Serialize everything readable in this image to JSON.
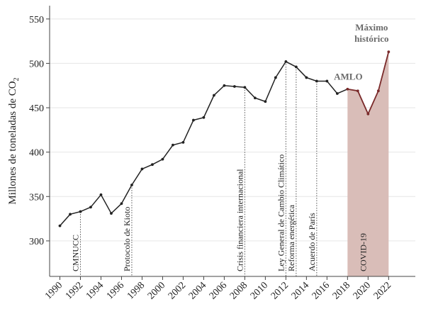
{
  "chart_data": {
    "type": "line",
    "title": "",
    "xlabel": "",
    "ylabel": "Millones de toneladas de CO",
    "ylabel_sub": "2",
    "xlim": [
      1989,
      2024.6
    ],
    "ylim": [
      260,
      565
    ],
    "yticks": [
      300,
      350,
      400,
      450,
      500,
      550
    ],
    "xticks": [
      "1990",
      "1992",
      "1994",
      "1996",
      "1998",
      "2000",
      "2002",
      "2004",
      "2006",
      "2008",
      "2010",
      "2012",
      "2014",
      "2016",
      "2018",
      "2020",
      "2022"
    ],
    "grid": "horizontal",
    "x": [
      1990,
      1991,
      1992,
      1993,
      1994,
      1995,
      1996,
      1997,
      1998,
      1999,
      2000,
      2001,
      2002,
      2003,
      2004,
      2005,
      2006,
      2007,
      2008,
      2009,
      2010,
      2011,
      2012,
      2013,
      2014,
      2015,
      2016,
      2017,
      2018,
      2019,
      2020,
      2021,
      2022
    ],
    "values": [
      317,
      330,
      333,
      338,
      352,
      331,
      342,
      363,
      381,
      386,
      392,
      408,
      411,
      436,
      439,
      464,
      475,
      474,
      473,
      461,
      457,
      484,
      502,
      496,
      484,
      480,
      480,
      466,
      471,
      469,
      443,
      469,
      513
    ],
    "highlight": {
      "label": "AMLO",
      "x_from": 2018,
      "x_to": 2022,
      "fill": "#d9bdb8",
      "line": "#7a2a2a"
    },
    "line_color": "#222222",
    "annotations": [
      {
        "x": 1992,
        "label": "CMNUCC"
      },
      {
        "x": 1997,
        "label": "Protocolo de Kioto"
      },
      {
        "x": 2008,
        "label": "Crisis financiera internacional"
      },
      {
        "x": 2012,
        "label": "Ley General de Cambio Climático"
      },
      {
        "x": 2013,
        "label": "Reforma energética"
      },
      {
        "x": 2015,
        "label": "Acuerdo de París"
      },
      {
        "x": 2020,
        "label": "COVID-19"
      }
    ],
    "peak_label": [
      "Máximo",
      "histórico"
    ]
  }
}
